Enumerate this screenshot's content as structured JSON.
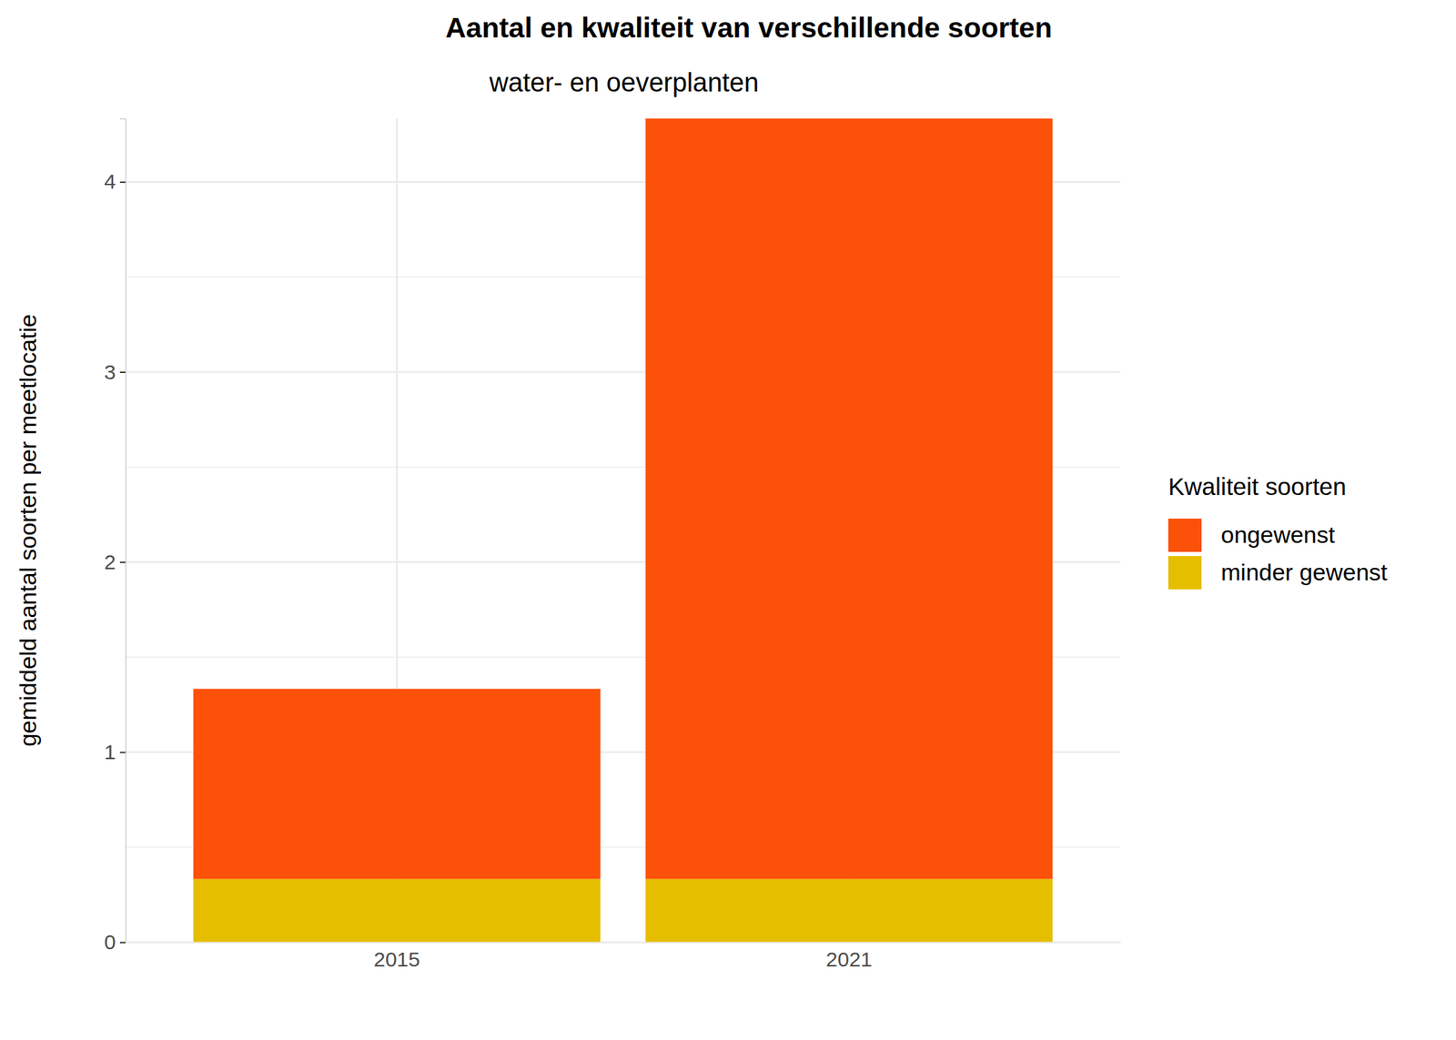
{
  "chart_data": {
    "type": "bar",
    "title": "Aantal en kwaliteit van verschillende soorten",
    "subtitle": "water- en oeverplanten",
    "y_label": "gemiddeld aantal soorten per meetlocatie",
    "legend_title": "Kwaliteit soorten",
    "categories": [
      "2015",
      "2021"
    ],
    "series": [
      {
        "name": "ongewenst",
        "color": "#fc5108",
        "values": [
          1.0,
          4.0
        ]
      },
      {
        "name": "minder gewenst",
        "color": "#e6be00",
        "values": [
          0.333,
          0.333
        ]
      }
    ],
    "stacked": true,
    "ylim": [
      0,
      4.333
    ],
    "yticks": [
      0,
      1,
      2,
      3,
      4
    ],
    "grid": true,
    "legend": "right"
  }
}
